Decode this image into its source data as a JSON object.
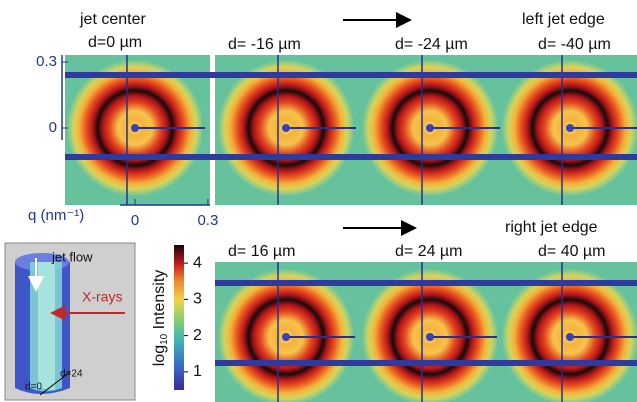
{
  "labels": {
    "top": {
      "heading_left": "jet center",
      "heading_right": "left jet edge",
      "panels": [
        "d=0 µm",
        "d= -16 µm",
        "d= -24 µm",
        "d= -40 µm"
      ]
    },
    "bottom": {
      "heading_right": "right jet edge",
      "panels": [
        "d= 16 µm",
        "d= 24 µm",
        "d= 40 µm"
      ]
    }
  },
  "q_axis": {
    "label": "q (nm⁻¹)",
    "xticks": [
      0,
      0.3
    ],
    "yticks": [
      0.3,
      0
    ]
  },
  "colorbar": {
    "label_main": "log",
    "label_sub": "10",
    "label_rest": " Intensity",
    "lim": [
      0.5,
      4.5
    ],
    "ticks": [
      1,
      2,
      3,
      4
    ]
  },
  "inset": {
    "flow": "jet flow",
    "xrays": "X-rays",
    "d24": "d=24",
    "d0": "d=0"
  }
}
